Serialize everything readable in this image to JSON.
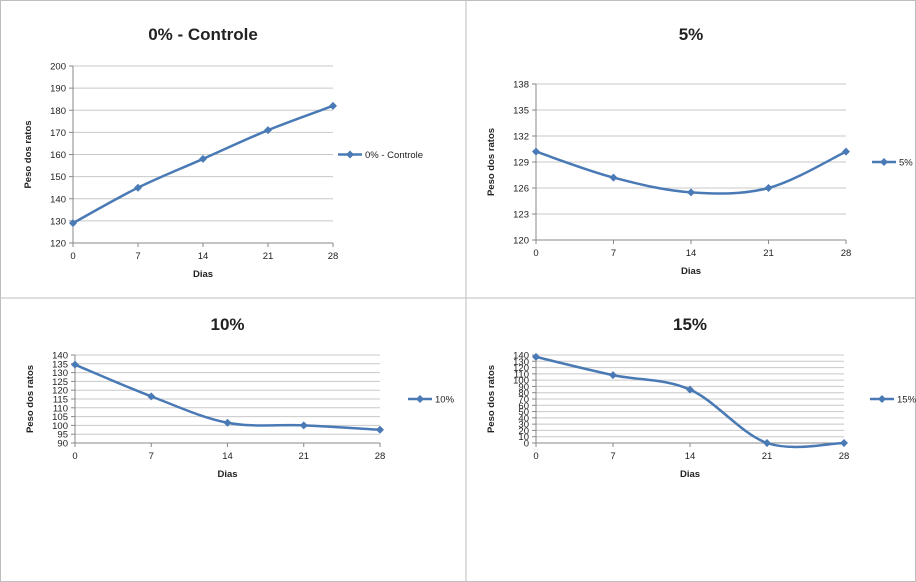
{
  "colors": {
    "line": "#4a7ab5",
    "grid": "#c8c8c8",
    "border": "#bdbdbd",
    "text": "#222222"
  },
  "chart_data": [
    {
      "type": "line",
      "title": "0% - Controle",
      "xlabel": "Dias",
      "ylabel": "Peso dos ratos",
      "x": [
        0,
        7,
        14,
        21,
        28
      ],
      "xticks": [
        "0",
        "7",
        "14",
        "21",
        "28"
      ],
      "ylim": [
        120,
        200
      ],
      "yticks": [
        120,
        130,
        140,
        150,
        160,
        170,
        180,
        190,
        200
      ],
      "grid": true,
      "legend_position": "right",
      "series": [
        {
          "name": "0% - Controle",
          "values": [
            129,
            145,
            158,
            171,
            182
          ]
        }
      ]
    },
    {
      "type": "line",
      "title": "5%",
      "xlabel": "Dias",
      "ylabel": "Peso dos ratos",
      "x": [
        0,
        7,
        14,
        21,
        28
      ],
      "xticks": [
        "0",
        "7",
        "14",
        "21",
        "28"
      ],
      "ylim": [
        120,
        138
      ],
      "yticks": [
        120,
        123,
        126,
        129,
        132,
        135,
        138
      ],
      "grid": true,
      "legend_position": "right",
      "series": [
        {
          "name": "5%",
          "values": [
            130.2,
            127.2,
            125.5,
            126.0,
            130.2
          ]
        }
      ]
    },
    {
      "type": "line",
      "title": "10%",
      "xlabel": "Dias",
      "ylabel": "Peso dos ratos",
      "x": [
        0,
        7,
        14,
        21,
        28
      ],
      "xticks": [
        "0",
        "7",
        "14",
        "21",
        "28"
      ],
      "ylim": [
        90,
        140
      ],
      "yticks": [
        90,
        95,
        100,
        105,
        110,
        115,
        120,
        125,
        130,
        135,
        140
      ],
      "grid": true,
      "legend_position": "right",
      "series": [
        {
          "name": "10%",
          "values": [
            134.5,
            116.5,
            101.5,
            100,
            97.5
          ]
        }
      ]
    },
    {
      "type": "line",
      "title": "15%",
      "xlabel": "Dias",
      "ylabel": "Peso dos ratos",
      "x": [
        0,
        7,
        14,
        21,
        28
      ],
      "xticks": [
        "0",
        "7",
        "14",
        "21",
        "28"
      ],
      "ylim": [
        0,
        140
      ],
      "yticks": [
        0,
        10,
        20,
        30,
        40,
        50,
        60,
        70,
        80,
        90,
        100,
        110,
        120,
        130,
        140
      ],
      "grid": true,
      "legend_position": "right",
      "series": [
        {
          "name": "15%",
          "values": [
            137,
            108,
            85,
            0,
            0
          ]
        }
      ]
    }
  ]
}
